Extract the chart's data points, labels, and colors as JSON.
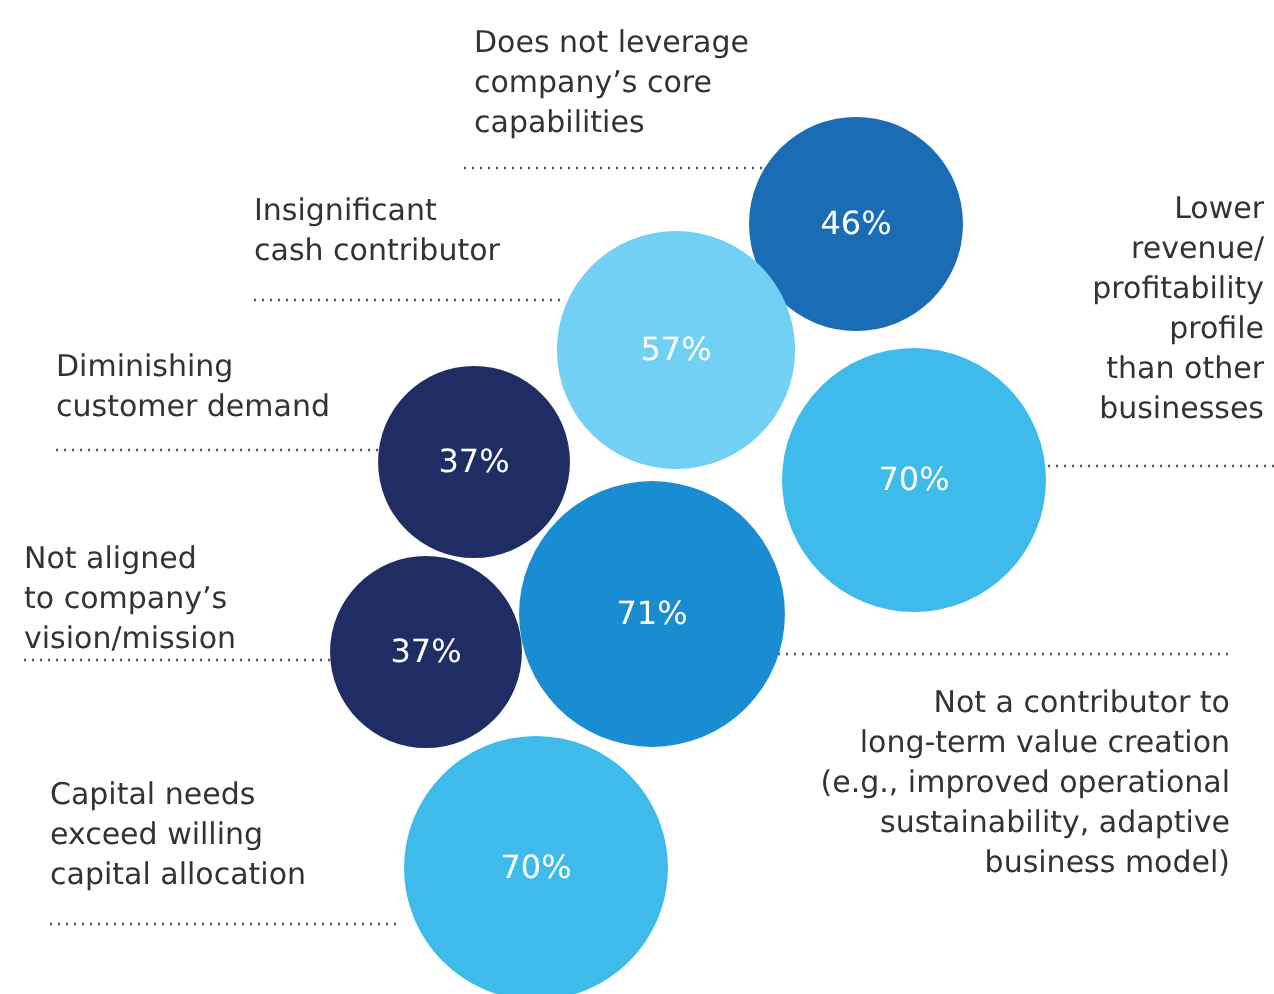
{
  "chart_data": {
    "type": "other",
    "categories": [
      "Does not leverage\ncompany’s core\ncapabilities",
      "Insignificant\ncash contributor",
      "Diminishing\ncustomer demand",
      "Lower\nrevenue/\nprofitability\nprofile\nthan other\nbusinesses",
      "Not a contributor to\nlong-term value creation\n(e.g., improved operational\nsustainability, adaptive\nbusiness model)",
      "Not aligned\nto company’s\nvision/mission",
      "Capital needs\nexceed willing\ncapital allocation"
    ],
    "values": [
      46,
      57,
      37,
      70,
      71,
      37,
      70
    ],
    "colors": [
      "#1a6db4",
      "#72d0f5",
      "#1f2d64",
      "#3ebbeb",
      "#1a8dd2",
      "#1f2d64",
      "#3ebbeb"
    ],
    "value_labels": [
      "46%",
      "57%",
      "37%",
      "70%",
      "71%",
      "37%",
      "70%"
    ]
  }
}
